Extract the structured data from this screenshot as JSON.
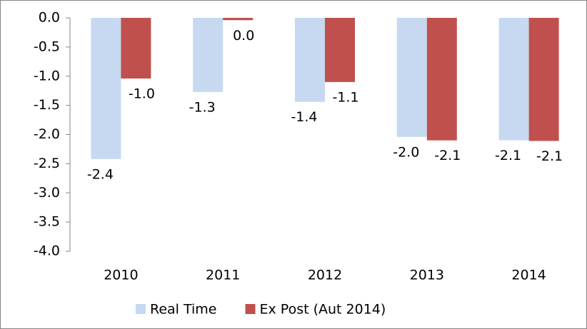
{
  "chart_data": {
    "type": "bar",
    "categories": [
      "2010",
      "2011",
      "2012",
      "2013",
      "2014"
    ],
    "series": [
      {
        "name": "Real Time",
        "color": "#c6d9f1",
        "values": [
          -2.42,
          -1.27,
          -1.44,
          -2.04,
          -2.1
        ],
        "value_labels": [
          "-2.4",
          "-1.3",
          "-1.4",
          "-2.0",
          "-2.1"
        ]
      },
      {
        "name": "Ex Post (Aut 2014)",
        "color": "#c0504d",
        "values": [
          -1.04,
          -0.04,
          -1.1,
          -2.1,
          -2.11
        ],
        "value_labels": [
          "-1.0",
          "0.0",
          "-1.1",
          "-2.1",
          "-2.1"
        ]
      }
    ],
    "ylim": [
      -4,
      0
    ],
    "yticks": [
      {
        "value": 0,
        "label": "0.0"
      },
      -0.5,
      {
        "value": -1,
        "label": "-1.0"
      },
      -1.5,
      {
        "value": -2,
        "label": "-2.0"
      },
      -2.5,
      {
        "value": -3,
        "label": "-3.0"
      },
      -3.5,
      {
        "value": -4,
        "label": "-4.0"
      }
    ],
    "grid": false,
    "legend": "bottom"
  }
}
